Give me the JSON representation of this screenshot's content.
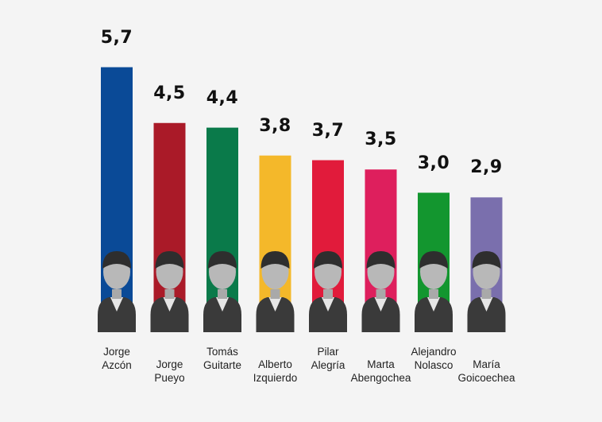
{
  "chart_data": {
    "type": "bar",
    "categories": [
      "Jorge\nAzcón",
      "Jorge\nPueyo",
      "Tomás\nGuitarte",
      "Alberto\nIzquierdo",
      "Pilar\nAlegría",
      "Marta\nAbengochea",
      "Alejandro\nNolasco",
      "María\nGoicoechea"
    ],
    "values": [
      5.7,
      4.5,
      4.4,
      3.8,
      3.7,
      3.5,
      3.0,
      2.9
    ],
    "value_labels": [
      "5,7",
      "4,5",
      "4,4",
      "3,8",
      "3,7",
      "3,5",
      "3,0",
      "2,9"
    ],
    "colors": [
      "#0a4a97",
      "#aa1a28",
      "#0a7a4a",
      "#f4b82a",
      "#e11b3b",
      "#de1f5d",
      "#13962f",
      "#7a6fad"
    ],
    "title": "",
    "xlabel": "",
    "ylabel": "",
    "grid": false,
    "legend": "none"
  }
}
